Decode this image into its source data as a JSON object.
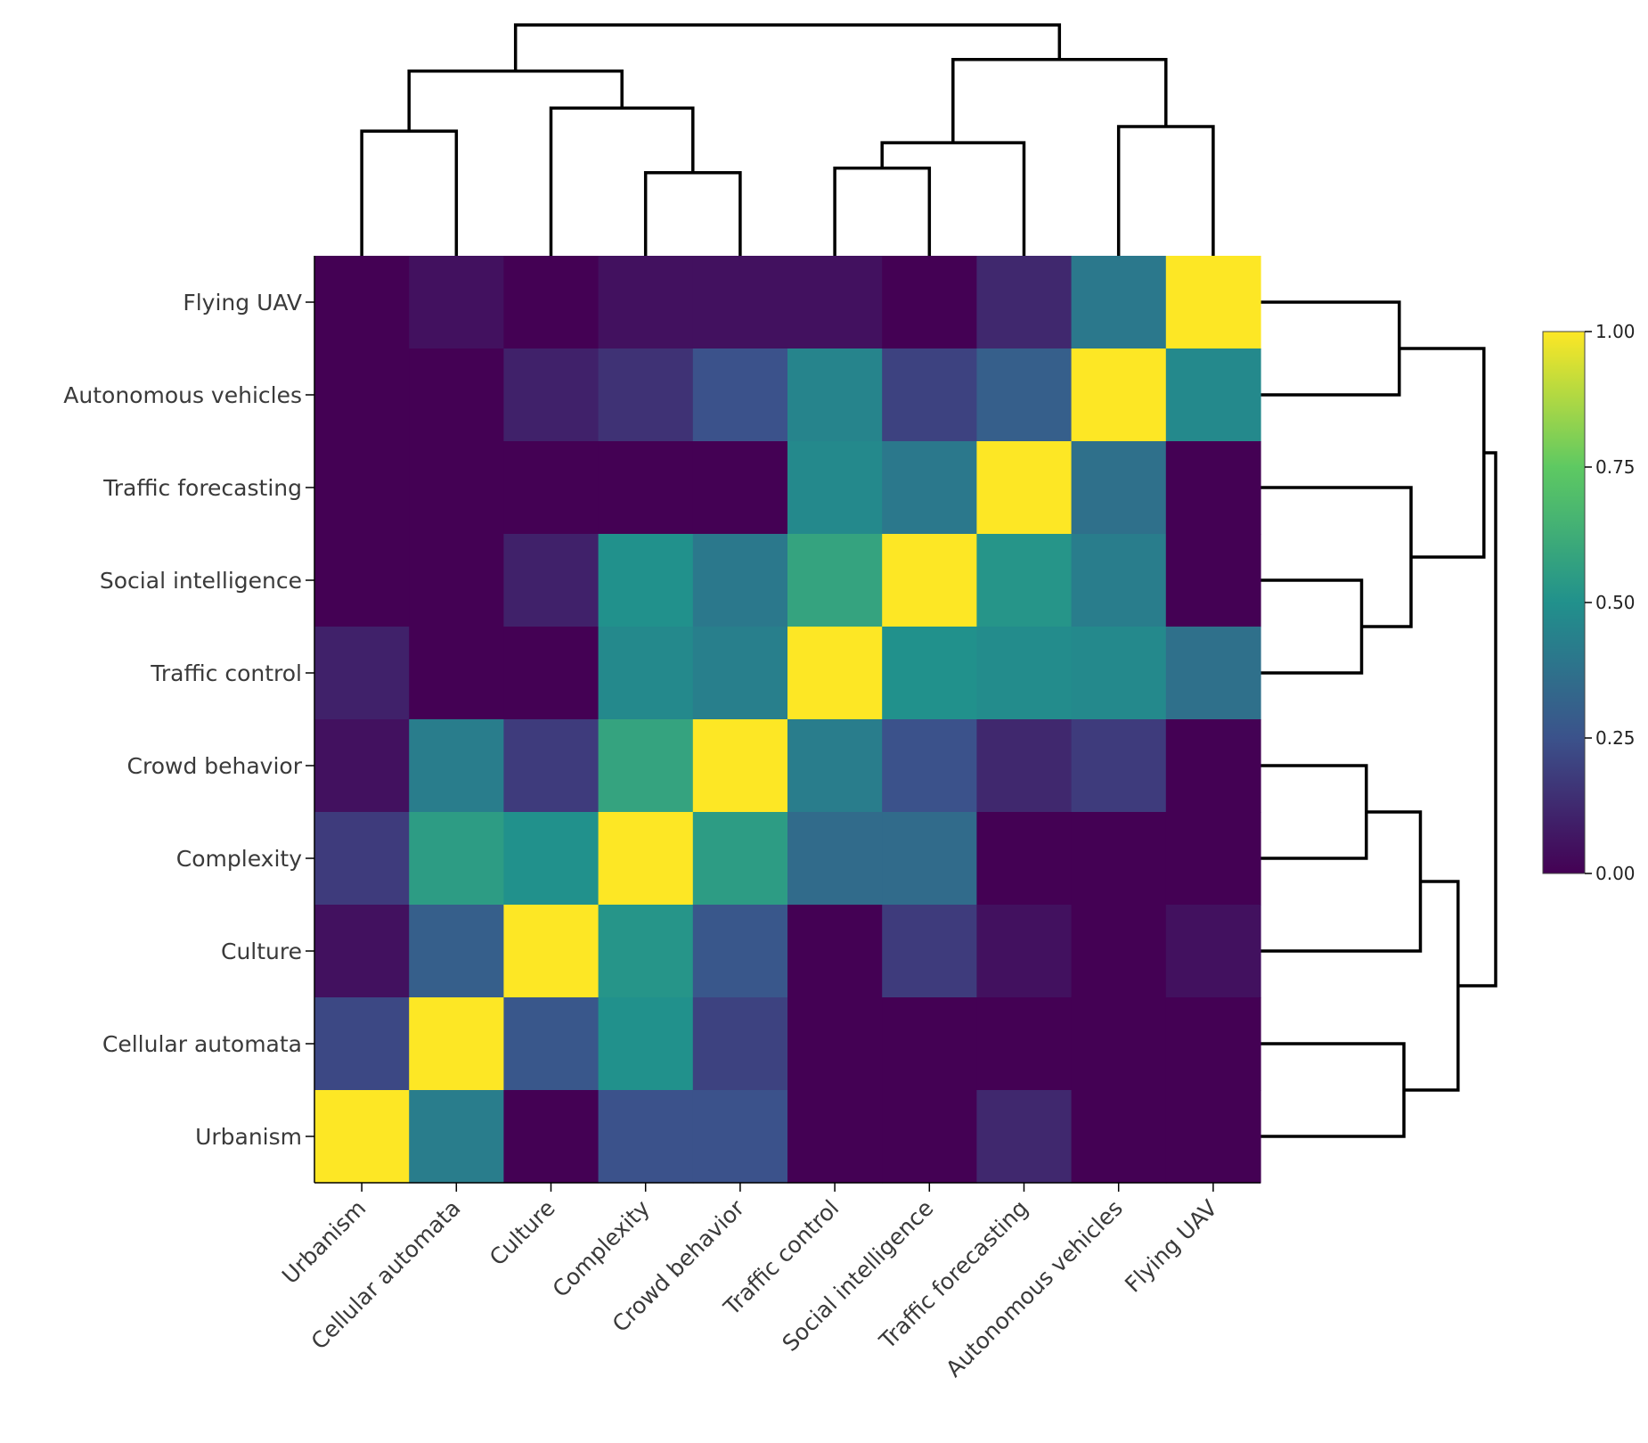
{
  "chart_data": {
    "type": "heatmap",
    "title": "",
    "xlabel": "",
    "ylabel": "",
    "colorscale": "viridis",
    "colors": [
      "#440154",
      "#3b528b",
      "#21918c",
      "#5ec962",
      "#fde725"
    ],
    "zlim": [
      0,
      1
    ],
    "x_labels": [
      "Urbanism",
      "Cellular automata",
      "Culture",
      "Complexity",
      "Crowd behavior",
      "Traffic control",
      "Social intelligence",
      "Traffic forecasting",
      "Autonomous vehicles",
      "Flying UAV"
    ],
    "y_labels": [
      "Flying UAV",
      "Autonomous vehicles",
      "Traffic forecasting",
      "Social intelligence",
      "Traffic control",
      "Crowd behavior",
      "Complexity",
      "Culture",
      "Cellular automata",
      "Urbanism"
    ],
    "values": [
      [
        0.0,
        0.05,
        0.0,
        0.05,
        0.05,
        0.05,
        0.0,
        0.12,
        0.4,
        1.0
      ],
      [
        0.0,
        0.0,
        0.1,
        0.15,
        0.25,
        0.45,
        0.2,
        0.3,
        1.0,
        0.47
      ],
      [
        0.0,
        0.0,
        0.0,
        0.0,
        0.0,
        0.47,
        0.4,
        1.0,
        0.37,
        0.0
      ],
      [
        0.0,
        0.0,
        0.1,
        0.5,
        0.4,
        0.58,
        1.0,
        0.52,
        0.42,
        0.0
      ],
      [
        0.1,
        0.0,
        0.0,
        0.47,
        0.43,
        1.0,
        0.5,
        0.48,
        0.47,
        0.37
      ],
      [
        0.05,
        0.42,
        0.18,
        0.58,
        1.0,
        0.42,
        0.25,
        0.12,
        0.18,
        0.0
      ],
      [
        0.18,
        0.55,
        0.5,
        1.0,
        0.55,
        0.35,
        0.35,
        0.0,
        0.0,
        0.0
      ],
      [
        0.05,
        0.3,
        1.0,
        0.52,
        0.27,
        0.0,
        0.18,
        0.05,
        0.0,
        0.05
      ],
      [
        0.22,
        1.0,
        0.27,
        0.5,
        0.2,
        0.0,
        0.0,
        0.0,
        0.0,
        0.0
      ],
      [
        1.0,
        0.42,
        0.0,
        0.25,
        0.25,
        0.0,
        0.0,
        0.12,
        0.0,
        0.0
      ]
    ],
    "colorbar": {
      "ticks": [
        0,
        0.25,
        0.5,
        0.75,
        1
      ],
      "tick_labels": [
        "0.00",
        "0.25",
        "0.50",
        "0.75",
        "1.00"
      ]
    },
    "dendrogram_top": [
      {
        "a": 0,
        "b": 1,
        "height": 0.54
      },
      {
        "a": 3,
        "b": 4,
        "height": 0.36
      },
      {
        "a": 2,
        "b": 3.5,
        "height": 0.64
      },
      {
        "a": 0.5,
        "b": 2.75,
        "height": 0.8
      },
      {
        "a": 5,
        "b": 6,
        "height": 0.38
      },
      {
        "a": 5.5,
        "b": 7,
        "height": 0.49
      },
      {
        "a": 8,
        "b": 9,
        "height": 0.56
      },
      {
        "a": 6.25,
        "b": 8.5,
        "height": 0.85
      },
      {
        "a": 1.625,
        "b": 7.375,
        "height": 1.0
      }
    ],
    "dendrogram_right": [
      {
        "a": 0,
        "b": 1,
        "height": 0.59
      },
      {
        "a": 3,
        "b": 4,
        "height": 0.43
      },
      {
        "a": 2,
        "b": 3.5,
        "height": 0.64
      },
      {
        "a": 0.5,
        "b": 2.75,
        "height": 0.95
      },
      {
        "a": 5,
        "b": 6,
        "height": 0.45
      },
      {
        "a": 5.5,
        "b": 7,
        "height": 0.68
      },
      {
        "a": 8,
        "b": 9,
        "height": 0.61
      },
      {
        "a": 6.25,
        "b": 8.5,
        "height": 0.84
      },
      {
        "a": 1.625,
        "b": 7.375,
        "height": 1.0
      }
    ]
  }
}
